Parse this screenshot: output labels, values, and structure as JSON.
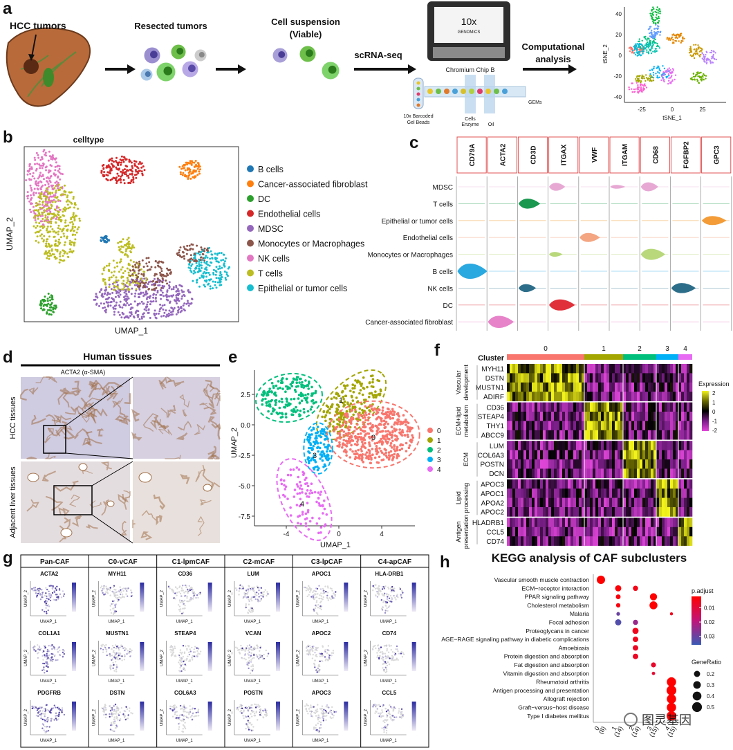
{
  "a": {
    "label": "a",
    "hcc_tumors": "HCC tumors",
    "resected_tumors": "Resected tumors",
    "cell_suspension": [
      "Cell suspension",
      "(Viable)"
    ],
    "method": "scRNA-seq",
    "analysis": [
      "Computational",
      "analysis"
    ],
    "device": [
      "10x",
      "GENOMICS"
    ],
    "chip": "Chromium Chip B",
    "beads": [
      "10x Barcoded",
      "Gel Beads"
    ],
    "cells": [
      "Cells",
      "Enzyme"
    ],
    "oil": "Oil",
    "gems": "GEMs",
    "tsne": {
      "x_label": "tSNE_1",
      "y_label": "tSNE_2",
      "xticks": [
        "-25",
        "0",
        "25"
      ],
      "yticks": [
        "40",
        "20",
        "0",
        "-20",
        "-40"
      ]
    }
  },
  "b": {
    "label": "b",
    "title": "celltype",
    "x_label": "UMAP_1",
    "y_label": "UMAP_2",
    "legend": [
      {
        "name": "B cells",
        "color": "#1f77b4"
      },
      {
        "name": "Cancer-associated fibroblast",
        "color": "#ff7f0e"
      },
      {
        "name": "DC",
        "color": "#2ca02c"
      },
      {
        "name": "Endothelial cells",
        "color": "#d62728"
      },
      {
        "name": "MDSC",
        "color": "#9467bd"
      },
      {
        "name": "Monocytes or Macrophages",
        "color": "#8c564b"
      },
      {
        "name": "NK cells",
        "color": "#e377c2"
      },
      {
        "name": "T cells",
        "color": "#bcbd22"
      },
      {
        "name": "Epithelial or tumor cells",
        "color": "#17becf"
      }
    ]
  },
  "c": {
    "label": "c",
    "genes": [
      "CD79A",
      "ACTA2",
      "CD3D",
      "ITGAX",
      "VWF",
      "ITGAM",
      "CD68",
      "FGFBP2",
      "GPC3"
    ],
    "cell_types": [
      "MDSC",
      "T cells",
      "Epithelial or tumor cells",
      "Endothelial cells",
      "Monocytes or Macrophages",
      "B cells",
      "NK cells",
      "DC",
      "Cancer-associated fibroblast"
    ]
  },
  "d": {
    "label": "d",
    "title": "Human tissues",
    "stain": "ACTA2 (α-SMA)",
    "rows": [
      "HCC tissues",
      "Adjacent liver tissues"
    ]
  },
  "e": {
    "label": "e",
    "x_label": "UMAP_1",
    "y_label": "UMAP_2",
    "xticks": [
      "-4",
      "0",
      "4"
    ],
    "yticks": [
      "2.5",
      "0.0",
      "-2.5",
      "-5.0",
      "-7.5"
    ],
    "legend": [
      {
        "name": "0",
        "color": "#f8766d"
      },
      {
        "name": "1",
        "color": "#a3a500"
      },
      {
        "name": "2",
        "color": "#00bf7d"
      },
      {
        "name": "3",
        "color": "#00b0f6"
      },
      {
        "name": "4",
        "color": "#e76bf3"
      }
    ],
    "cluster_tags": [
      "1",
      "0",
      "3",
      "4"
    ]
  },
  "f": {
    "label": "f",
    "cluster_title": "Cluster",
    "clusters": [
      "0",
      "1",
      "2",
      "3",
      "4"
    ],
    "groups": [
      {
        "name": [
          "Vascular",
          "development"
        ],
        "color": "#f8766d",
        "genes": [
          "MYH11",
          "DSTN",
          "MUSTN1",
          "ADIRF"
        ]
      },
      {
        "name": [
          "ECM+lipid",
          "metabolism"
        ],
        "color": "#a3a500",
        "genes": [
          "CD36",
          "STEAP4",
          "THY1",
          "ABCC9"
        ]
      },
      {
        "name": [
          "ECM"
        ],
        "color": "#00bf7d",
        "genes": [
          "LUM",
          "COL6A3",
          "POSTN",
          "DCN"
        ]
      },
      {
        "name": [
          "Lipid",
          "processing"
        ],
        "color": "#00b0f6",
        "genes": [
          "APOC3",
          "APOC1",
          "APOA2",
          "APOC2"
        ]
      },
      {
        "name": [
          "Antigen",
          "presentation"
        ],
        "color": "#e76bf3",
        "genes": [
          "HLADRB1",
          "CCL5",
          "CD74"
        ]
      }
    ],
    "legend_title": "Expression",
    "legend_ticks": [
      "2",
      "1",
      "0",
      "-1",
      "-2"
    ]
  },
  "g": {
    "label": "g",
    "x_label": "UMAP_1",
    "y_label": "UMAP_2",
    "columns": [
      {
        "name": "Pan-CAF",
        "genes": [
          "ACTA2",
          "COL1A1",
          "PDGFRB"
        ]
      },
      {
        "name": "C0-vCAF",
        "genes": [
          "MYH11",
          "MUSTN1",
          "DSTN"
        ]
      },
      {
        "name": "C1-lpmCAF",
        "genes": [
          "CD36",
          "STEAP4",
          "COL6A3"
        ]
      },
      {
        "name": "C2-mCAF",
        "genes": [
          "LUM",
          "VCAN",
          "POSTN"
        ]
      },
      {
        "name": "C3-lpCAF",
        "genes": [
          "APOC1",
          "APOC2",
          "APOC3"
        ]
      },
      {
        "name": "C4-apCAF",
        "genes": [
          "HLA-DRB1",
          "CD74",
          "CCL5"
        ]
      }
    ]
  },
  "h": {
    "label": "h",
    "title": "KEGG analysis of CAF subclusters",
    "pathways": [
      "Vascular smooth muscle contraction",
      "ECM−receptor interaction",
      "PPAR signaling pathway",
      "Cholesterol metabolism",
      "Malaria",
      "Focal adhesion",
      "Proteoglycans in cancer",
      "AGE−RAGE signaling pathway in diabetic complications",
      "Amoebiasis",
      "Protein digestion and absorption",
      "Fat digestion and absorption",
      "Vitamin digestion and absorption",
      "Rheumatoid arthritis",
      "Antigen processing and presentation",
      "Allograft rejection",
      "Graft−versus−host disease",
      "Type I diabetes mellitus"
    ],
    "clusters": [
      {
        "name": "0",
        "count": "(8)"
      },
      {
        "name": "1",
        "count": "(14)"
      },
      {
        "name": "2",
        "count": "(14)"
      },
      {
        "name": "3",
        "count": "(15)"
      },
      {
        "name": "4",
        "count": "(15)"
      }
    ],
    "gene_ratio": [
      [
        0.36,
        null,
        null,
        null,
        null
      ],
      [
        null,
        0.2,
        0.14,
        null,
        null
      ],
      [
        null,
        0.12,
        null,
        0.27,
        null
      ],
      [
        null,
        0.1,
        null,
        0.33,
        null
      ],
      [
        null,
        0.07,
        null,
        null,
        0.05
      ],
      [
        null,
        0.2,
        0.14,
        null,
        null
      ],
      [
        null,
        null,
        0.2,
        null,
        null
      ],
      [
        null,
        null,
        0.16,
        null,
        null
      ],
      [
        null,
        null,
        0.16,
        null,
        null
      ],
      [
        null,
        null,
        0.16,
        null,
        null
      ],
      [
        null,
        null,
        null,
        0.13,
        null
      ],
      [
        null,
        null,
        null,
        0.06,
        null
      ],
      [
        null,
        null,
        null,
        null,
        0.45
      ],
      [
        null,
        null,
        null,
        null,
        0.5
      ],
      [
        null,
        null,
        null,
        null,
        0.45
      ],
      [
        null,
        null,
        null,
        null,
        0.45
      ],
      [
        null,
        null,
        null,
        null,
        0.48
      ]
    ],
    "p_adjust": [
      [
        0.001,
        null,
        null,
        null,
        null
      ],
      [
        null,
        0.003,
        0.005,
        null,
        null
      ],
      [
        null,
        0.004,
        null,
        0.002,
        null
      ],
      [
        null,
        0.004,
        null,
        0.001,
        null
      ],
      [
        null,
        0.03,
        null,
        null,
        0.006
      ],
      [
        null,
        0.033,
        0.024,
        null,
        null
      ],
      [
        null,
        null,
        0.006,
        null,
        null
      ],
      [
        null,
        null,
        0.006,
        null,
        null
      ],
      [
        null,
        null,
        0.007,
        null,
        null
      ],
      [
        null,
        null,
        0.007,
        null,
        null
      ],
      [
        null,
        null,
        null,
        0.008,
        null
      ],
      [
        null,
        null,
        null,
        0.009,
        null
      ],
      [
        null,
        null,
        null,
        null,
        0.001
      ],
      [
        null,
        null,
        null,
        null,
        0.001
      ],
      [
        null,
        null,
        null,
        null,
        0.001
      ],
      [
        null,
        null,
        null,
        null,
        0.001
      ],
      [
        null,
        null,
        null,
        null,
        0.001
      ]
    ],
    "color_title": "p.adjust",
    "color_ticks": [
      0.01,
      0.02,
      0.03
    ],
    "color_lim": [
      0.002,
      0.036
    ],
    "size_title": "GeneRatio",
    "size_ticks": [
      0.2,
      0.3,
      0.4,
      0.5
    ]
  },
  "watermark": "图灵基因"
}
